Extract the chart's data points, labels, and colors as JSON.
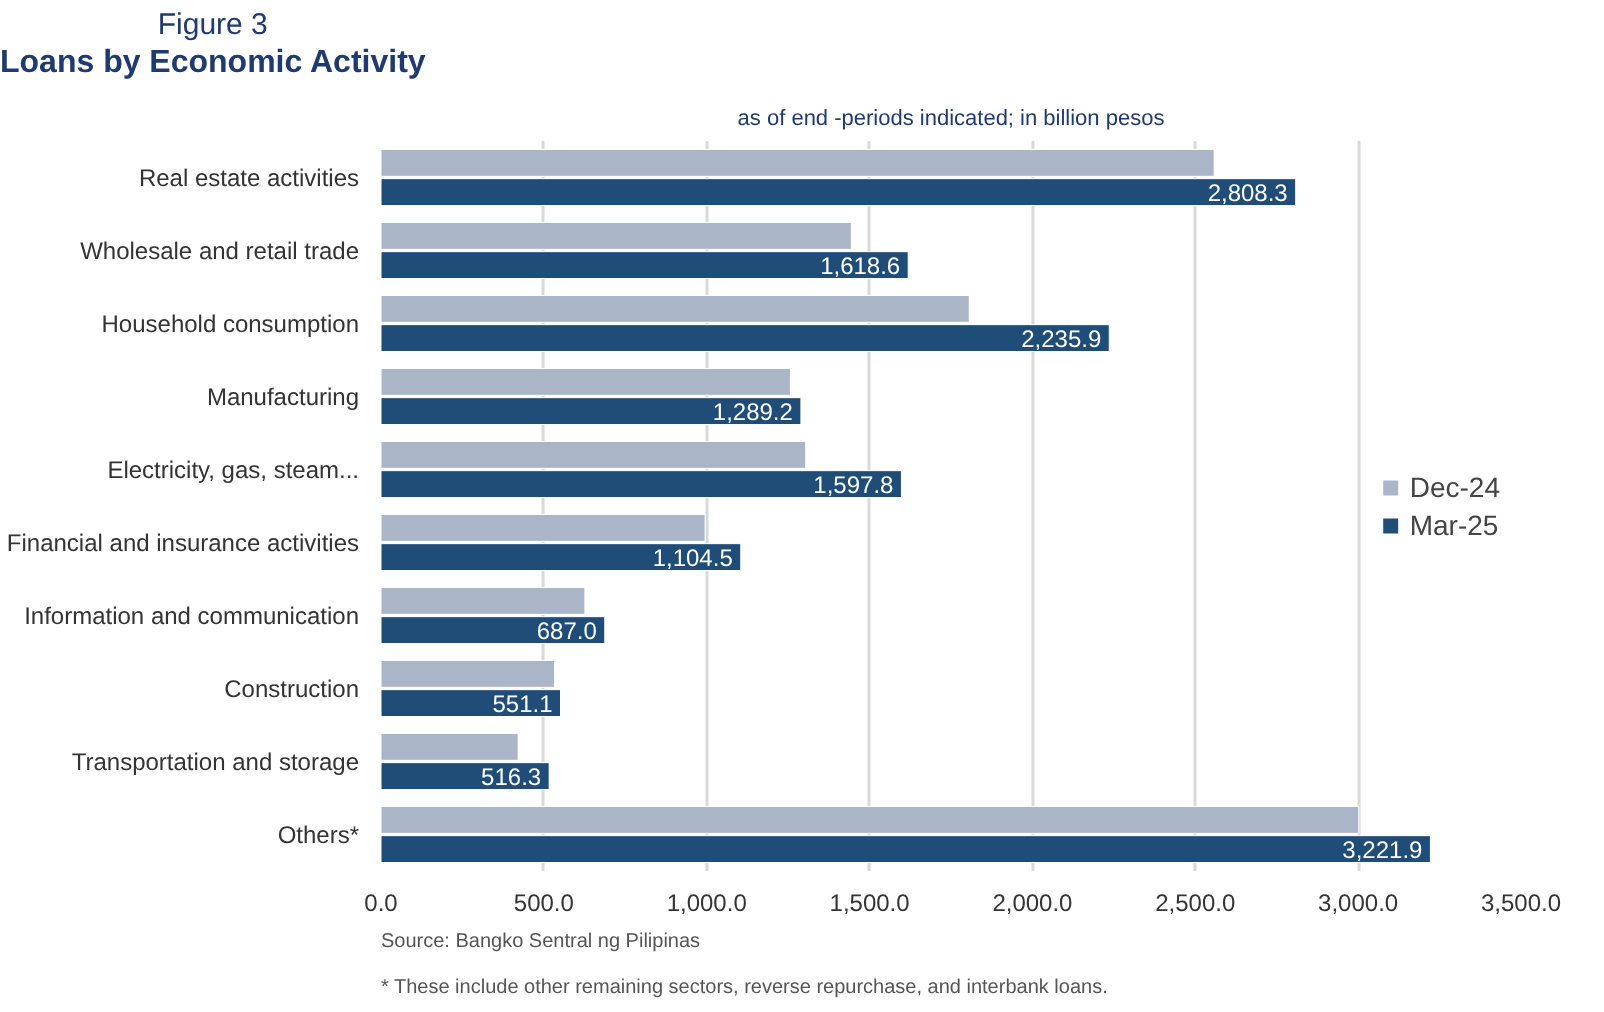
{
  "chart_data": {
    "type": "bar",
    "orientation": "horizontal",
    "title": "Figure 3\nLoans by Economic Activity",
    "subtitle": "as of end -periods indicated; in billion pesos",
    "categories": [
      "Real estate activities",
      "Wholesale and retail trade",
      "Household consumption",
      "Manufacturing",
      "Electricity, gas, steam...",
      "Financial and insurance activities",
      "Information and communication",
      "Construction",
      "Transportation and storage",
      "Others*"
    ],
    "series": [
      {
        "name": "Dec-24",
        "color": "#abb5c8",
        "values": [
          2558,
          1444,
          1806,
          1257,
          1304,
          995,
          626,
          533,
          421,
          3002
        ]
      },
      {
        "name": "Mar-25",
        "color": "#1f4d78",
        "values": [
          2808.3,
          1618.6,
          2235.9,
          1289.2,
          1597.8,
          1104.5,
          687.0,
          551.1,
          516.3,
          3221.9
        ],
        "value_labels": [
          "2,808.3",
          "1,618.6",
          "2,235.9",
          "1,289.2",
          "1,597.8",
          "1,104.5",
          "687.0",
          "551.1",
          "516.3",
          "3,221.9"
        ]
      }
    ],
    "xlim": [
      0,
      3500
    ],
    "xticks": [
      {
        "value": 0,
        "label": "0.0"
      },
      {
        "value": 500,
        "label": "500.0"
      },
      {
        "value": 1000,
        "label": "1,000.0"
      },
      {
        "value": 1500,
        "label": "1,500.0"
      },
      {
        "value": 2000,
        "label": "2,000.0"
      },
      {
        "value": 2500,
        "label": "2,500.0"
      },
      {
        "value": 3000,
        "label": "3,000.0"
      },
      {
        "value": 3500,
        "label": "3,500.0"
      }
    ],
    "grid": "x",
    "legend": "right",
    "annotations": [
      "Source: Bangko Sentral ng Pilipinas",
      "* These include other remaining sectors, reverse repurchase, and interbank loans."
    ]
  }
}
